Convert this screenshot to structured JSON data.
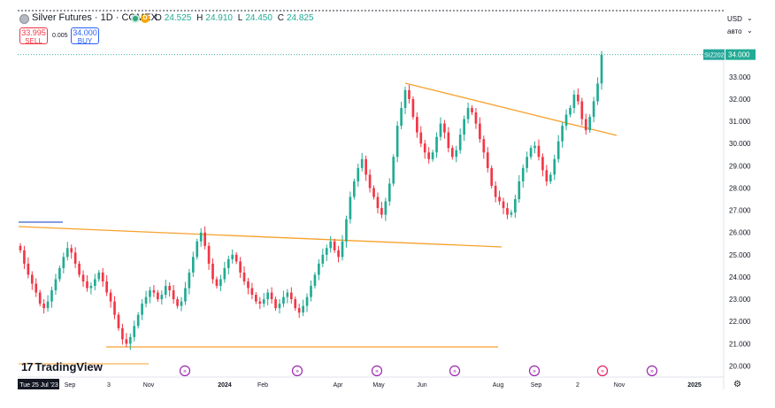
{
  "header": {
    "symbol_title": "Silver Futures · 1D · COMEX",
    "ohlc": [
      {
        "key": "O",
        "value": "24.525"
      },
      {
        "key": "H",
        "value": "24.910"
      },
      {
        "key": "L",
        "value": "24.450"
      },
      {
        "key": "C",
        "value": "24.825"
      }
    ],
    "d_badge": "D",
    "sell_price": "33.995",
    "sell_label": "SELL",
    "spread": "0.005",
    "buy_price": "34.000",
    "buy_label": "BUY",
    "currency": "USD",
    "scale_mode": "авто"
  },
  "logo_text": "TradingView",
  "colors": {
    "up": "#22ab94",
    "down": "#f23645",
    "trendline": "#f7a12d",
    "axis_text": "#131722",
    "price_label_bg": "#22ab94",
    "event_icon": "#9c27b0",
    "blue_ray": "#5b7bd8"
  },
  "chart_data": {
    "type": "candlestick",
    "symbol": "SIZ2024",
    "last_price": "34.000",
    "ylim": [
      19.8,
      34.9
    ],
    "y_ticks": [
      "33.000",
      "32.000",
      "31.000",
      "30.000",
      "29.000",
      "28.000",
      "27.000",
      "26.000",
      "25.000",
      "24.000",
      "23.000",
      "22.000",
      "21.000",
      "20.000"
    ],
    "x_tick_labels": [
      "Tue 25 Jul '23",
      "Sep",
      "3",
      "Nov",
      "2024",
      "Feb",
      "Apr",
      "May",
      "Jun",
      "Aug",
      "Sep",
      "2",
      "Nov",
      "2025"
    ],
    "close_series": [
      25.2,
      24.6,
      24.1,
      23.7,
      23.3,
      22.8,
      22.6,
      22.9,
      23.4,
      23.9,
      24.4,
      24.9,
      25.3,
      25.1,
      24.6,
      24.1,
      23.8,
      23.5,
      23.6,
      23.9,
      24.2,
      23.8,
      23.3,
      22.9,
      22.3,
      21.7,
      21.2,
      21.0,
      21.3,
      21.8,
      22.3,
      22.8,
      23.1,
      23.4,
      23.3,
      23.0,
      23.2,
      23.6,
      23.4,
      23.0,
      22.7,
      22.9,
      23.5,
      24.2,
      24.9,
      25.6,
      26.0,
      25.4,
      24.6,
      23.9,
      23.6,
      23.9,
      24.4,
      24.8,
      25.0,
      24.7,
      24.2,
      23.8,
      23.5,
      23.2,
      22.9,
      22.8,
      23.0,
      23.3,
      23.0,
      22.6,
      22.8,
      23.1,
      23.3,
      23.0,
      22.6,
      22.4,
      22.7,
      23.1,
      23.6,
      24.1,
      24.6,
      25.0,
      25.3,
      25.6,
      25.2,
      24.9,
      25.6,
      26.6,
      27.6,
      28.3,
      28.9,
      29.3,
      28.6,
      28.0,
      27.6,
      27.1,
      26.8,
      27.4,
      28.2,
      29.4,
      30.8,
      31.6,
      32.4,
      32.0,
      31.2,
      30.5,
      30.0,
      29.6,
      29.3,
      29.6,
      30.3,
      30.9,
      30.5,
      29.8,
      29.4,
      29.7,
      30.4,
      31.1,
      31.6,
      31.4,
      30.9,
      30.2,
      29.6,
      28.9,
      28.1,
      27.6,
      27.4,
      27.1,
      26.8,
      26.9,
      27.5,
      28.3,
      28.9,
      29.4,
      29.8,
      29.9,
      29.4,
      28.8,
      28.3,
      28.6,
      29.3,
      30.1,
      30.8,
      31.3,
      31.6,
      32.2,
      31.9,
      31.1,
      30.6,
      31.2,
      31.9,
      32.7,
      34.0
    ]
  },
  "drawings": [
    {
      "type": "line",
      "points": [
        [
          "2023-07-14",
          26.25
        ],
        [
          "2024-07-29",
          25.4
        ]
      ]
    },
    {
      "type": "line",
      "points": [
        [
          "2023-09-29",
          20.9
        ],
        [
          "2024-07-29",
          20.9
        ]
      ]
    },
    {
      "type": "line",
      "points": [
        [
          "2024-05-20",
          32.7
        ],
        [
          "2024-10-29",
          30.4
        ]
      ]
    }
  ],
  "event_markers": 9
}
